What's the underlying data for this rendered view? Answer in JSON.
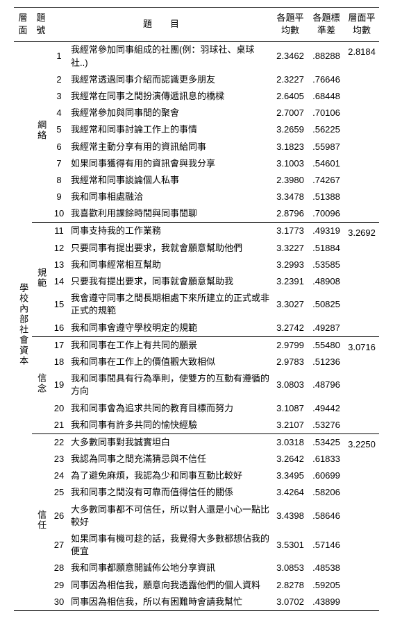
{
  "header": {
    "dim": "層面",
    "no": "題號",
    "item": "題　　目",
    "mean": "各題平均數",
    "sd": "各題標準差",
    "dmean": "層面平均數"
  },
  "big_dim": "學校內部社會資本",
  "groups": [
    {
      "name": "網絡",
      "dim_mean": "2.8184",
      "rows": [
        {
          "n": "1",
          "t": "我經常參加同事組成的社團(例：羽球社、桌球社..)",
          "m": "2.3462",
          "s": ".88288"
        },
        {
          "n": "2",
          "t": "我經常透過同事介紹而認識更多朋友",
          "m": "2.3227",
          "s": ".76646"
        },
        {
          "n": "3",
          "t": "我經常在同事之間扮演傳遞訊息的橋樑",
          "m": "2.6405",
          "s": ".68448"
        },
        {
          "n": "4",
          "t": "我經常參加與同事間的聚會",
          "m": "2.7007",
          "s": ".70106"
        },
        {
          "n": "5",
          "t": "我經常和同事討論工作上的事情",
          "m": "3.2659",
          "s": ".56225"
        },
        {
          "n": "6",
          "t": "我經常主動分享有用的資訊給同事",
          "m": "3.1823",
          "s": ".55987"
        },
        {
          "n": "7",
          "t": "如果同事獲得有用的資訊會與我分享",
          "m": "3.1003",
          "s": ".54601"
        },
        {
          "n": "8",
          "t": "我經常和同事談論個人私事",
          "m": "2.3980",
          "s": ".74267"
        },
        {
          "n": "9",
          "t": "我和同事相處融洽",
          "m": "3.3478",
          "s": ".51388"
        },
        {
          "n": "10",
          "t": "我喜歡利用課餘時間與同事閒聊",
          "m": "2.8796",
          "s": ".70096"
        }
      ]
    },
    {
      "name": "規範",
      "dim_mean": "3.2692",
      "rows": [
        {
          "n": "11",
          "t": "同事支持我的工作業務",
          "m": "3.1773",
          "s": ".49319"
        },
        {
          "n": "12",
          "t": "只要同事有提出要求，我就會願意幫助他們",
          "m": "3.3227",
          "s": ".51884"
        },
        {
          "n": "13",
          "t": "我和同事經常相互幫助",
          "m": "3.2993",
          "s": ".53585"
        },
        {
          "n": "14",
          "t": "只要我有提出要求，同事就會願意幫助我",
          "m": "3.2391",
          "s": ".48908"
        },
        {
          "n": "15",
          "t": "我會遵守同事之間長期相處下來所建立的正式或非正式的規範",
          "m": "3.3027",
          "s": ".50825"
        },
        {
          "n": "16",
          "t": "我和同事會遵守學校明定的規範",
          "m": "3.2742",
          "s": ".49287"
        }
      ]
    },
    {
      "name": "信念",
      "dim_mean": "3.0716",
      "rows": [
        {
          "n": "17",
          "t": "我和同事在工作上有共同的願景",
          "m": "2.9799",
          "s": ".55480"
        },
        {
          "n": "18",
          "t": "我和同事在工作上的價值觀大致相似",
          "m": "2.9783",
          "s": ".51236"
        },
        {
          "n": "19",
          "t": "我和同事間具有行為準則，使雙方的互動有遵循的方向",
          "m": "3.0803",
          "s": ".48796"
        },
        {
          "n": "20",
          "t": "我和同事會為追求共同的教育目標而努力",
          "m": "3.1087",
          "s": ".49442"
        },
        {
          "n": "21",
          "t": "我和同事有許多共同的愉快經驗",
          "m": "3.2107",
          "s": ".53276"
        }
      ]
    },
    {
      "name": "信任",
      "dim_mean": "3.2250",
      "rows": [
        {
          "n": "22",
          "t": "大多數同事對我誠實坦白",
          "m": "3.0318",
          "s": ".53425"
        },
        {
          "n": "23",
          "t": "我認為同事之間充滿猜忌與不信任",
          "m": "3.2642",
          "s": ".61833"
        },
        {
          "n": "24",
          "t": "為了避免麻煩，我認為少和同事互動比較好",
          "m": "3.3495",
          "s": ".60699"
        },
        {
          "n": "25",
          "t": "我和同事之間沒有可靠而值得信任的關係",
          "m": "3.4264",
          "s": ".58206"
        },
        {
          "n": "26",
          "t": "大多數同事都不可信任，所以對人還是小心一點比較好",
          "m": "3.4398",
          "s": ".58646"
        },
        {
          "n": "27",
          "t": "如果同事有機可趁的話，我覺得大多數都想佔我的便宜",
          "m": "3.5301",
          "s": ".57146"
        },
        {
          "n": "28",
          "t": "我和同事都願意開誠佈公地分享資訊",
          "m": "3.0853",
          "s": ".48538"
        },
        {
          "n": "29",
          "t": "同事因為相信我，願意向我透露他們的個人資料",
          "m": "2.8278",
          "s": ".59205"
        },
        {
          "n": "30",
          "t": "同事因為相信我，所以有困難時會請我幫忙",
          "m": "3.0702",
          "s": ".43899"
        }
      ]
    }
  ]
}
